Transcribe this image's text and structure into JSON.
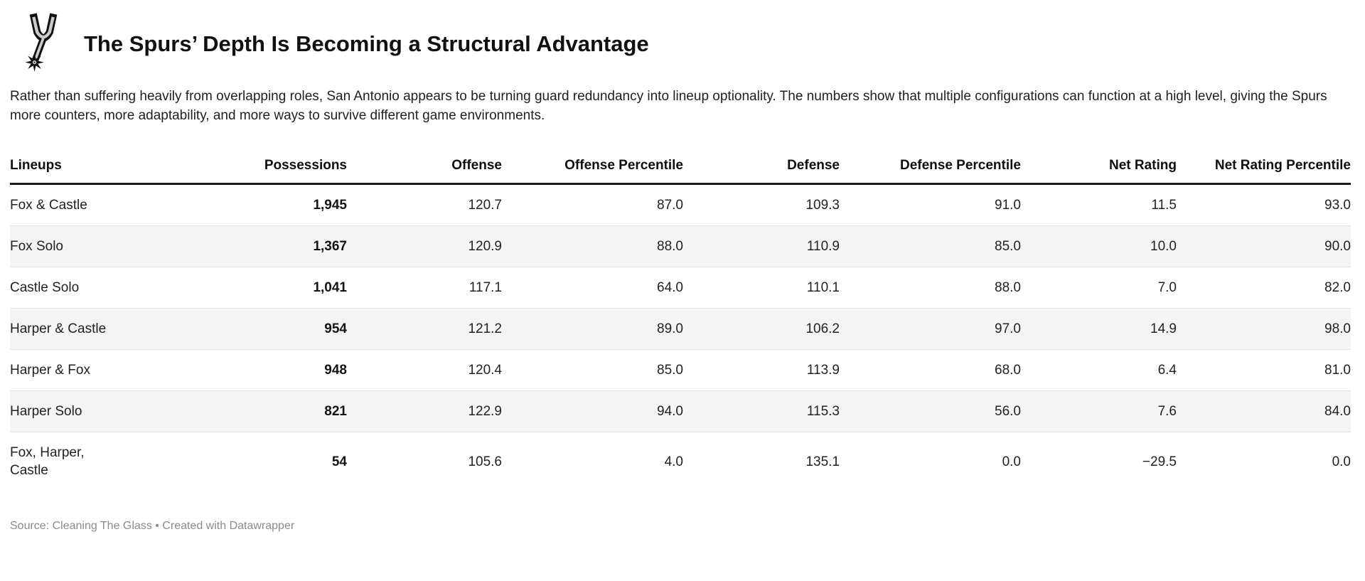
{
  "header": {
    "title": "The Spurs’ Depth Is Becoming a Structural Advantage",
    "description": "Rather than suffering heavily from overlapping roles, San Antonio appears to be turning guard redundancy into lineup optionality. The numbers show that multiple configurations can function at a high level, giving the Spurs more counters, more adaptability, and more ways to survive different game environments.",
    "logo": "san-antonio-spurs-logo"
  },
  "chart_data": {
    "type": "table",
    "title": "The Spurs’ Depth Is Becoming a Structural Advantage",
    "columns": [
      "Lineups",
      "Possessions",
      "Offense",
      "Offense Percentile",
      "Defense",
      "Defense Percentile",
      "Net Rating",
      "Net Rating Percentile"
    ],
    "rows": [
      {
        "cells": [
          "Fox & Castle",
          "1,945",
          "120.7",
          "87.0",
          "109.3",
          "91.0",
          "11.5",
          "93.0"
        ]
      },
      {
        "cells": [
          "Fox Solo",
          "1,367",
          "120.9",
          "88.0",
          "110.9",
          "85.0",
          "10.0",
          "90.0"
        ]
      },
      {
        "cells": [
          "Castle Solo",
          "1,041",
          "117.1",
          "64.0",
          "110.1",
          "88.0",
          "7.0",
          "82.0"
        ]
      },
      {
        "cells": [
          "Harper & Castle",
          "954",
          "121.2",
          "89.0",
          "106.2",
          "97.0",
          "14.9",
          "98.0"
        ]
      },
      {
        "cells": [
          "Harper & Fox",
          "948",
          "120.4",
          "85.0",
          "113.9",
          "68.0",
          "6.4",
          "81.0"
        ]
      },
      {
        "cells": [
          "Harper Solo",
          "821",
          "122.9",
          "94.0",
          "115.3",
          "56.0",
          "7.6",
          "84.0"
        ]
      },
      {
        "cells": [
          "Fox, Harper, Castle",
          "54",
          "105.6",
          "4.0",
          "135.1",
          "0.0",
          "−29.5",
          "0.0"
        ]
      }
    ],
    "layout": {
      "grid": false,
      "striped_rows": true,
      "bold_column": "Possessions"
    }
  },
  "colors": {
    "title": "#111111",
    "body_text": "#222222",
    "stripe": "#f4f4f4",
    "header_rule": "#1a1a1a",
    "source_text": "#8b8b8b",
    "logo_silver": "#c9cbcd",
    "logo_black": "#111111"
  },
  "footer": {
    "source": "Source: Cleaning The Glass • Created with Datawrapper"
  }
}
